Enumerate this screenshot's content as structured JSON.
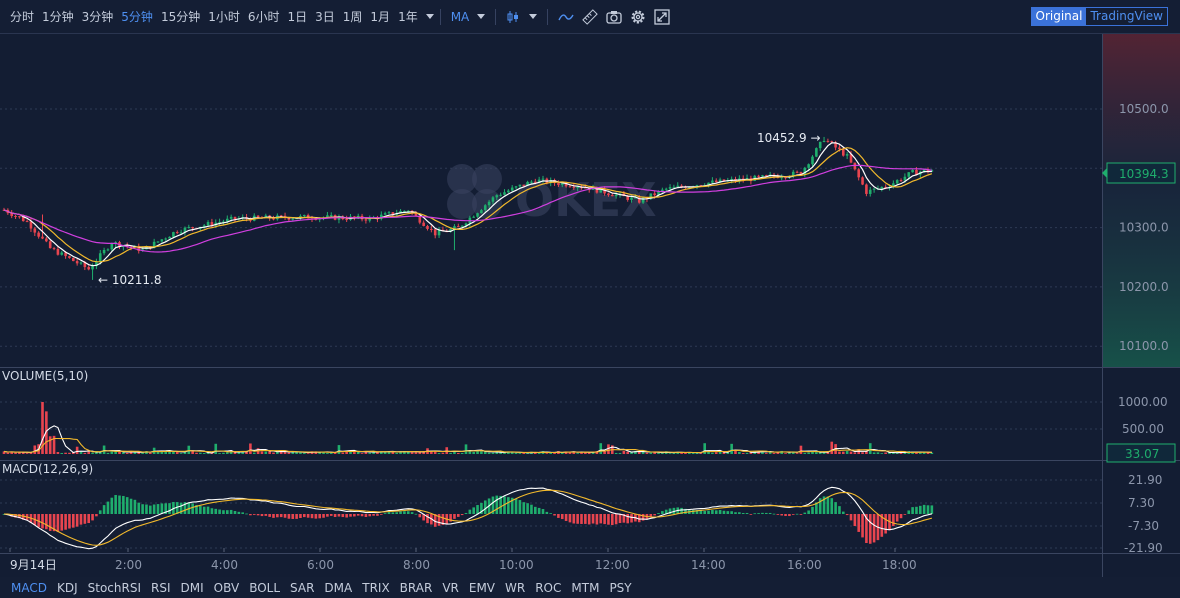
{
  "toolbar": {
    "timeframes": [
      "分时",
      "1分钟",
      "3分钟",
      "5分钟",
      "15分钟",
      "1小时",
      "6小时",
      "1日",
      "3日",
      "1周",
      "1月",
      "1年"
    ],
    "active_timeframe": "5分钟",
    "indicator": "MA",
    "icons": [
      "candle-type-icon",
      "drawing-line-icon",
      "ruler-icon",
      "camera-icon",
      "settings-gear-icon",
      "fullscreen-icon"
    ]
  },
  "view_switch": {
    "original": "Original",
    "tradingview": "TradingView",
    "active": "Original"
  },
  "watermark": "OKEX",
  "colors": {
    "up": "#1fae6d",
    "down": "#e8454f",
    "ma5": "#ffffff",
    "ma10": "#f2b92c",
    "ma30": "#d13fe0",
    "accent": "#4e8ff0"
  },
  "price_panel": {
    "axis_ticks": [
      "10500.0",
      "10300.0",
      "10200.0",
      "10100.0"
    ],
    "current_price": "10394.3",
    "high_label": "10452.9",
    "low_label": "10211.8"
  },
  "volume_panel": {
    "title": "VOLUME(5,10)",
    "axis_ticks": [
      "1000.00",
      "500.00"
    ],
    "current_value": "33.07"
  },
  "macd_panel": {
    "title": "MACD(12,26,9)",
    "axis_ticks": [
      "21.90",
      "7.30",
      "-7.30",
      "-21.90"
    ]
  },
  "time_axis": {
    "labels": [
      "9月14日",
      "2:00",
      "4:00",
      "6:00",
      "8:00",
      "10:00",
      "12:00",
      "14:00",
      "16:00",
      "18:00"
    ]
  },
  "indicator_tabs": [
    "MACD",
    "KDJ",
    "StochRSI",
    "RSI",
    "DMI",
    "OBV",
    "BOLL",
    "SAR",
    "DMA",
    "TRIX",
    "BRAR",
    "VR",
    "EMV",
    "WR",
    "ROC",
    "MTM",
    "PSY"
  ],
  "active_indicator_tab": "MACD",
  "chart_data": {
    "type": "candlestick",
    "series_summary": {
      "price_range_visible": [
        10080,
        10560
      ],
      "keyframes": [
        [
          0,
          10330
        ],
        [
          6,
          10310
        ],
        [
          12,
          10265
        ],
        [
          22,
          10230
        ],
        [
          28,
          10275
        ],
        [
          36,
          10262
        ],
        [
          45,
          10295
        ],
        [
          60,
          10315
        ],
        [
          80,
          10318
        ],
        [
          95,
          10315
        ],
        [
          105,
          10330
        ],
        [
          112,
          10290
        ],
        [
          118,
          10300
        ],
        [
          128,
          10355
        ],
        [
          138,
          10380
        ],
        [
          150,
          10370
        ],
        [
          165,
          10345
        ],
        [
          172,
          10365
        ],
        [
          182,
          10375
        ],
        [
          195,
          10383
        ],
        [
          207,
          10392
        ],
        [
          213,
          10450
        ],
        [
          219,
          10420
        ],
        [
          224,
          10360
        ],
        [
          230,
          10372
        ],
        [
          236,
          10393
        ],
        [
          241,
          10397
        ]
      ]
    }
  }
}
